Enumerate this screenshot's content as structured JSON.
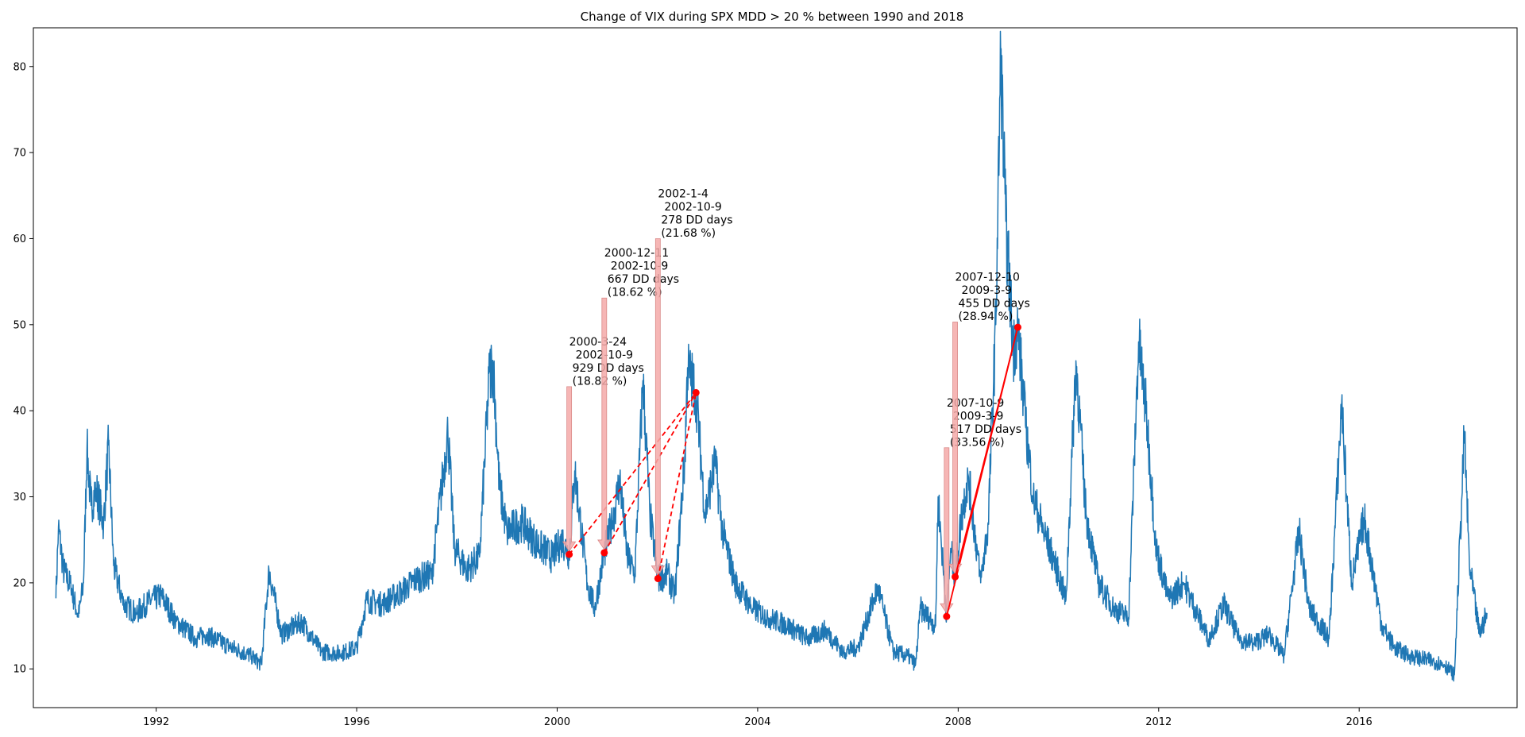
{
  "chart_data": {
    "type": "line",
    "title": "Change of VIX during SPX MDD > 20 % between 1990 and 2018",
    "xlabel": "",
    "ylabel": "",
    "xlim": [
      1989.55,
      2019.15
    ],
    "ylim": [
      5.5,
      84.5
    ],
    "x_ticks": [
      1992,
      1996,
      2000,
      2004,
      2008,
      2012,
      2016
    ],
    "y_ticks": [
      10,
      20,
      30,
      40,
      50,
      60,
      70,
      80
    ],
    "grid": false,
    "legend": "none",
    "colors": {
      "series": "#1f77b4",
      "markers": "#ff0000",
      "arrows": "#f4a9a8"
    },
    "series": [
      {
        "values": [
          [
            1990.0,
            18.2
          ],
          [
            1990.05,
            26.5
          ],
          [
            1990.15,
            21.5
          ],
          [
            1990.3,
            19.5
          ],
          [
            1990.45,
            16.0
          ],
          [
            1990.55,
            20.0
          ],
          [
            1990.62,
            35.5
          ],
          [
            1990.7,
            29.0
          ],
          [
            1990.8,
            31.0
          ],
          [
            1990.95,
            27.0
          ],
          [
            1991.05,
            36.0
          ],
          [
            1991.15,
            22.0
          ],
          [
            1991.35,
            17.5
          ],
          [
            1991.6,
            16.5
          ],
          [
            1991.9,
            18.0
          ],
          [
            1992.1,
            18.5
          ],
          [
            1992.4,
            15.5
          ],
          [
            1992.8,
            13.5
          ],
          [
            1993.0,
            14.0
          ],
          [
            1993.5,
            12.5
          ],
          [
            1993.9,
            11.5
          ],
          [
            1994.1,
            10.5
          ],
          [
            1994.25,
            21.5
          ],
          [
            1994.5,
            14.0
          ],
          [
            1994.9,
            15.5
          ],
          [
            1995.3,
            12.0
          ],
          [
            1995.7,
            11.8
          ],
          [
            1996.0,
            12.5
          ],
          [
            1996.2,
            18.0
          ],
          [
            1996.5,
            17.5
          ],
          [
            1996.9,
            19.0
          ],
          [
            1997.2,
            20.5
          ],
          [
            1997.5,
            21.0
          ],
          [
            1997.82,
            37.5
          ],
          [
            1997.95,
            24.0
          ],
          [
            1998.2,
            21.5
          ],
          [
            1998.45,
            23.0
          ],
          [
            1998.65,
            44.5
          ],
          [
            1998.72,
            45.5
          ],
          [
            1998.85,
            31.0
          ],
          [
            1999.0,
            26.0
          ],
          [
            1999.3,
            27.0
          ],
          [
            1999.6,
            24.5
          ],
          [
            1999.9,
            23.0
          ],
          [
            2000.1,
            25.0
          ],
          [
            2000.24,
            23.3
          ],
          [
            2000.35,
            33.0
          ],
          [
            2000.6,
            20.0
          ],
          [
            2000.75,
            17.0
          ],
          [
            2000.94,
            23.5
          ],
          [
            2001.1,
            27.0
          ],
          [
            2001.25,
            32.0
          ],
          [
            2001.4,
            23.0
          ],
          [
            2001.55,
            21.0
          ],
          [
            2001.71,
            43.5
          ],
          [
            2001.85,
            28.0
          ],
          [
            2002.01,
            20.5
          ],
          [
            2002.2,
            21.0
          ],
          [
            2002.35,
            18.5
          ],
          [
            2002.55,
            35.0
          ],
          [
            2002.6,
            45.0
          ],
          [
            2002.77,
            42.1
          ],
          [
            2002.95,
            28.0
          ],
          [
            2003.15,
            34.0
          ],
          [
            2003.3,
            26.0
          ],
          [
            2003.55,
            20.0
          ],
          [
            2003.9,
            17.0
          ],
          [
            2004.2,
            16.0
          ],
          [
            2004.6,
            15.0
          ],
          [
            2005.0,
            13.5
          ],
          [
            2005.35,
            14.5
          ],
          [
            2005.7,
            12.0
          ],
          [
            2006.0,
            12.5
          ],
          [
            2006.4,
            19.5
          ],
          [
            2006.7,
            12.0
          ],
          [
            2007.0,
            11.5
          ],
          [
            2007.15,
            10.5
          ],
          [
            2007.25,
            17.0
          ],
          [
            2007.55,
            15.0
          ],
          [
            2007.6,
            30.0
          ],
          [
            2007.77,
            16.1
          ],
          [
            2007.85,
            24.0
          ],
          [
            2007.94,
            20.7
          ],
          [
            2008.05,
            27.0
          ],
          [
            2008.2,
            32.5
          ],
          [
            2008.45,
            20.0
          ],
          [
            2008.6,
            27.0
          ],
          [
            2008.75,
            50.0
          ],
          [
            2008.85,
            80.9
          ],
          [
            2008.95,
            62.0
          ],
          [
            2009.1,
            47.0
          ],
          [
            2009.19,
            49.7
          ],
          [
            2009.35,
            38.0
          ],
          [
            2009.5,
            30.0
          ],
          [
            2009.7,
            26.0
          ],
          [
            2009.95,
            22.0
          ],
          [
            2010.15,
            18.0
          ],
          [
            2010.35,
            45.8
          ],
          [
            2010.55,
            28.0
          ],
          [
            2010.8,
            20.0
          ],
          [
            2011.1,
            17.0
          ],
          [
            2011.4,
            16.0
          ],
          [
            2011.6,
            48.0
          ],
          [
            2011.75,
            40.0
          ],
          [
            2011.95,
            24.0
          ],
          [
            2012.2,
            18.0
          ],
          [
            2012.5,
            20.0
          ],
          [
            2012.8,
            16.0
          ],
          [
            2013.0,
            13.5
          ],
          [
            2013.3,
            17.5
          ],
          [
            2013.6,
            13.5
          ],
          [
            2013.9,
            13.0
          ],
          [
            2014.2,
            14.0
          ],
          [
            2014.5,
            11.5
          ],
          [
            2014.8,
            26.0
          ],
          [
            2015.0,
            17.0
          ],
          [
            2015.4,
            13.5
          ],
          [
            2015.65,
            40.7
          ],
          [
            2015.85,
            20.0
          ],
          [
            2016.1,
            27.5
          ],
          [
            2016.45,
            15.0
          ],
          [
            2016.7,
            12.5
          ],
          [
            2017.0,
            11.5
          ],
          [
            2017.4,
            11.0
          ],
          [
            2017.7,
            10.5
          ],
          [
            2017.9,
            9.3
          ],
          [
            2018.1,
            37.3
          ],
          [
            2018.2,
            22.0
          ],
          [
            2018.4,
            14.0
          ],
          [
            2018.55,
            16.5
          ]
        ]
      }
    ],
    "drawdowns": [
      {
        "label": [
          "2000-3-24",
          "2002-10-9",
          "929 DD days",
          "(18.82 %)"
        ],
        "start": [
          2000.24,
          23.3
        ],
        "end": [
          2002.77,
          42.1
        ],
        "arrow_top": 42.8,
        "style": "dashed"
      },
      {
        "label": [
          "2000-12-11",
          "2002-10-9",
          "667 DD days",
          "(18.62 %)"
        ],
        "start": [
          2000.94,
          23.5
        ],
        "end": [
          2002.77,
          42.1
        ],
        "arrow_top": 53.1,
        "style": "dashed"
      },
      {
        "label": [
          "2002-1-4",
          "2002-10-9",
          "278 DD days",
          "(21.68 %)"
        ],
        "start": [
          2002.01,
          20.5
        ],
        "end": [
          2002.77,
          42.1
        ],
        "arrow_top": 60.0,
        "style": "dashed"
      },
      {
        "label": [
          "2007-10-9",
          "2009-3-9",
          "517 DD days",
          "(33.56 %)"
        ],
        "start": [
          2007.77,
          16.1
        ],
        "end": [
          2009.19,
          49.7
        ],
        "arrow_top": 35.7,
        "style": "solid"
      },
      {
        "label": [
          "2007-12-10",
          "2009-3-9",
          "455 DD days",
          "(28.94 %)"
        ],
        "start": [
          2007.94,
          20.7
        ],
        "end": [
          2009.19,
          49.7
        ],
        "arrow_top": 50.3,
        "style": "solid"
      }
    ]
  }
}
